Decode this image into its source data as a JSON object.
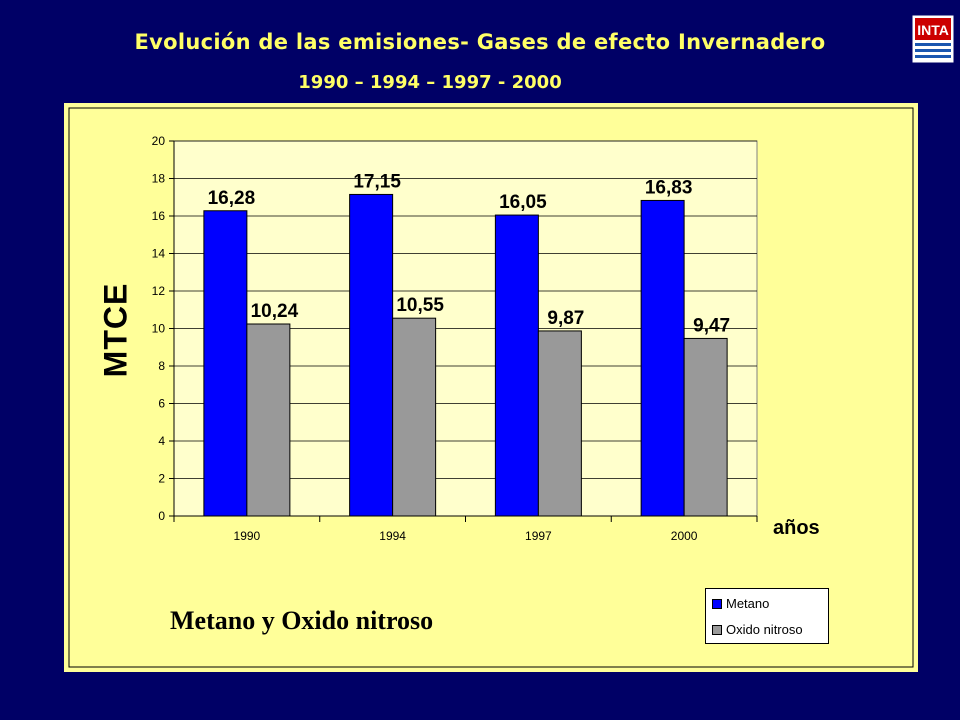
{
  "slide": {
    "title": "Evolución de las emisiones- Gases de efecto Invernadero",
    "subtitle": "1990 – 1994 – 1997 - 2000",
    "logo_text": "INTA",
    "caption": "Metano y Oxido nitroso"
  },
  "colors": {
    "background": "#000066",
    "title": "#ffff66",
    "panel": "#ffff99",
    "plot_bg": "#ffffcc",
    "logo_red": "#cc0000",
    "logo_blue": "#1a56b0"
  },
  "chart_data": {
    "type": "bar",
    "categories": [
      "1990",
      "1994",
      "1997",
      "2000"
    ],
    "series": [
      {
        "name": "Metano",
        "color": "#0000ff",
        "values": [
          16.28,
          17.15,
          16.05,
          16.83
        ],
        "labels": [
          "16,28",
          "17,15",
          "16,05",
          "16,83"
        ]
      },
      {
        "name": "Oxido nitroso",
        "color": "#999999",
        "values": [
          10.24,
          10.55,
          9.87,
          9.47
        ],
        "labels": [
          "10,24",
          "10,55",
          "9,87",
          "9,47"
        ]
      }
    ],
    "ylabel": "MTCE",
    "xlabel": "años",
    "ylim": [
      0,
      20
    ],
    "yticks": [
      0,
      2,
      4,
      6,
      8,
      10,
      12,
      14,
      16,
      18,
      20
    ],
    "grid": true,
    "legend": "bottom-right"
  }
}
